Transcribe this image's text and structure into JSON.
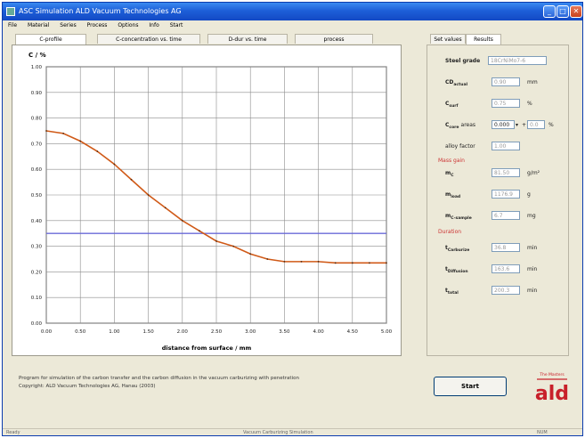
{
  "window": {
    "title": "ASC Simulation ALD Vacuum Technologies AG",
    "icons": [
      "app-icon",
      "minimize-icon",
      "maximize-icon",
      "close-icon"
    ]
  },
  "menu": [
    "File",
    "Material",
    "Series",
    "Process",
    "Options",
    "Info",
    "Start"
  ],
  "left_tabs": [
    "C-profile",
    "C-concentration vs. time",
    "D-dur vs. time",
    "process"
  ],
  "right_tabs": [
    "Set values",
    "Results"
  ],
  "chart_data": {
    "type": "line",
    "ylabel": "C / %",
    "xlabel": "distance from surface / mm",
    "x_ticks": [
      "0.00",
      "0.50",
      "1.00",
      "1.50",
      "2.00",
      "2.50",
      "3.00",
      "3.50",
      "4.00",
      "4.50",
      "5.00"
    ],
    "y_ticks": [
      "0.00",
      "0.10",
      "0.20",
      "0.30",
      "0.40",
      "0.50",
      "0.60",
      "0.70",
      "0.80",
      "0.90",
      "1.00"
    ],
    "xlim": [
      0,
      5
    ],
    "ylim": [
      0,
      1
    ],
    "series": [
      {
        "color": "#d05a18",
        "x": [
          0,
          0.25,
          0.5,
          0.75,
          1.0,
          1.25,
          1.5,
          1.75,
          2.0,
          2.25,
          2.5,
          2.75,
          3.0,
          3.25,
          3.5,
          3.75,
          4.0,
          4.25,
          4.5,
          4.75,
          5.0
        ],
        "y": [
          0.75,
          0.74,
          0.71,
          0.67,
          0.62,
          0.56,
          0.5,
          0.45,
          0.4,
          0.36,
          0.32,
          0.3,
          0.27,
          0.25,
          0.24,
          0.24,
          0.24,
          0.235,
          0.235,
          0.235,
          0.235
        ]
      }
    ],
    "reference_line": {
      "y": 0.35,
      "color": "#6a6ad8"
    },
    "grid": true
  },
  "results": {
    "steel_grade": {
      "label": "Steel grade",
      "value": "18CrNiMo7-6"
    },
    "cd": {
      "label": "CD",
      "sub": "actual",
      "value": "0.90",
      "unit": "mm"
    },
    "c_surf": {
      "label": "C",
      "sub": "surf",
      "value": "0.75",
      "unit": "%"
    },
    "c_core": {
      "label": "C",
      "sub": "core",
      "extra": "areas",
      "value": "0.000",
      "plus": "+",
      "value2": "0.0",
      "unit": "%"
    },
    "alloy": {
      "label": "alloy factor",
      "value": "1.00"
    },
    "mass_gain_title": "Mass gain",
    "m_c": {
      "label": "m",
      "sub": "C",
      "value": "81.50",
      "unit": "g/m²"
    },
    "m_load": {
      "label": "m",
      "sub": "load",
      "value": "1176.9",
      "unit": "g"
    },
    "m_c_sample": {
      "label": "m",
      "sub": "C-sample",
      "value": "6.7",
      "unit": "mg"
    },
    "duration_title": "Duration",
    "t_carb": {
      "label": "t",
      "sub": "Carburize",
      "value": "36.8",
      "unit": "min"
    },
    "t_diff": {
      "label": "t",
      "sub": "Diffusion",
      "value": "163.6",
      "unit": "min"
    },
    "t_total": {
      "label": "t",
      "sub": "total",
      "value": "200.3",
      "unit": "min"
    }
  },
  "status_msg": [
    "Program for simulation of the carbon transfer and the carbon diffusion in the vacuum carburizing with penetration",
    "Copyright: ALD Vacuum Technologies AG, Hanau (2003)"
  ],
  "start_button": "Start",
  "logo_text": "ald",
  "logo_tagline": "The Masters",
  "statusbar": [
    "Ready",
    "Vacuum Carburizing Simulation",
    "NUM"
  ]
}
